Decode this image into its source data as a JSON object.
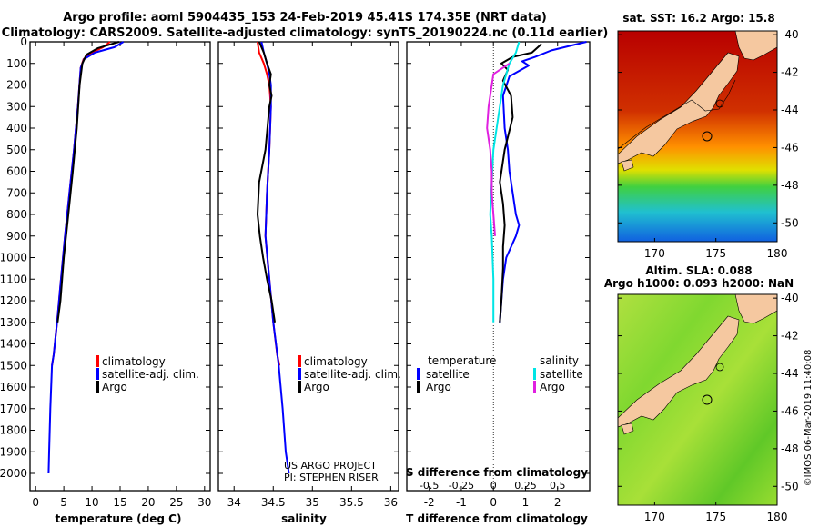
{
  "header": {
    "line1": "Argo profile: aoml 5904435_153 24-Feb-2019 45.41S 174.35E (NRT data)",
    "line2": "Climatology: CARS2009. Satellite-adjusted climatology: synTS_20190224.nc (0.11d earlier)"
  },
  "colors": {
    "climatology": "#ff0000",
    "satellite": "#0000ff",
    "argo": "#000000",
    "sal_satellite": "#00e5e5",
    "sal_argo": "#e020e0",
    "land": "#f5c8a0"
  },
  "chart_data": [
    {
      "type": "line",
      "id": "temperature",
      "xlabel": "temperature (deg C)",
      "ylabel": "",
      "xlim": [
        -1,
        31
      ],
      "ylim": [
        2080,
        0
      ],
      "xticks": [
        "0",
        "5",
        "10",
        "15",
        "20",
        "25",
        "30"
      ],
      "xtick_values": [
        0,
        5,
        10,
        15,
        20,
        25,
        30
      ],
      "yticks": [
        "0",
        "100",
        "200",
        "300",
        "400",
        "500",
        "600",
        "700",
        "800",
        "900",
        "1000",
        "1100",
        "1200",
        "1300",
        "1400",
        "1500",
        "1600",
        "1700",
        "1800",
        "1900",
        "2000"
      ],
      "ytick_values": [
        0,
        100,
        200,
        300,
        400,
        500,
        600,
        700,
        800,
        900,
        1000,
        1100,
        1200,
        1300,
        1400,
        1500,
        1600,
        1700,
        1800,
        1900,
        2000
      ],
      "legend": [
        "climatology",
        "satellite-adj. clim.",
        "Argo"
      ],
      "series": [
        {
          "name": "climatology",
          "color_key": "climatology",
          "x": [
            13.2,
            12,
            10,
            8.5,
            8,
            7.5,
            6.8,
            6,
            5.2,
            4.5,
            3.8,
            3.2,
            2.9
          ],
          "y": [
            0,
            25,
            50,
            80,
            120,
            300,
            500,
            700,
            900,
            1100,
            1300,
            1450,
            1500
          ]
        },
        {
          "name": "satellite-adj. clim.",
          "color_key": "satellite",
          "x": [
            15.6,
            14,
            10.5,
            8.6,
            8,
            7.5,
            6.8,
            6,
            5.2,
            4.5,
            3.8,
            3.2,
            2.9,
            2.6,
            2.4,
            2.3
          ],
          "y": [
            0,
            25,
            50,
            80,
            120,
            300,
            500,
            700,
            900,
            1100,
            1300,
            1450,
            1500,
            1700,
            1900,
            2000
          ]
        },
        {
          "name": "Argo",
          "color_key": "argo",
          "x": [
            14.8,
            11,
            9,
            8.3,
            7.8,
            7.3,
            6.6,
            5.8,
            5,
            4.4,
            3.9
          ],
          "y": [
            0,
            30,
            60,
            100,
            200,
            400,
            600,
            800,
            1000,
            1200,
            1300
          ]
        }
      ]
    },
    {
      "type": "line",
      "id": "salinity",
      "xlabel": "salinity",
      "ylabel": "",
      "xlim": [
        33.8,
        36.1
      ],
      "ylim": [
        2080,
        0
      ],
      "xticks": [
        "34",
        "34.5",
        "35",
        "35.5",
        "36"
      ],
      "xtick_values": [
        34,
        34.5,
        35,
        35.5,
        36
      ],
      "legend": [
        "climatology",
        "satellite-adj. clim.",
        "Argo"
      ],
      "annotations": [
        "US ARGO PROJECT",
        "PI: STEPHEN RISER"
      ],
      "series": [
        {
          "name": "climatology",
          "color_key": "climatology",
          "x": [
            34.3,
            34.32,
            34.38,
            34.42,
            34.45,
            34.47,
            34.45,
            34.42,
            34.4,
            34.45,
            34.5,
            34.55,
            34.58
          ],
          "y": [
            0,
            50,
            100,
            150,
            200,
            300,
            500,
            700,
            900,
            1100,
            1300,
            1450,
            1500
          ]
        },
        {
          "name": "satellite-adj. clim.",
          "color_key": "satellite",
          "x": [
            34.35,
            34.38,
            34.42,
            34.45,
            34.47,
            34.47,
            34.45,
            34.42,
            34.4,
            34.45,
            34.5,
            34.57,
            34.62,
            34.66,
            34.7
          ],
          "y": [
            0,
            50,
            100,
            150,
            200,
            300,
            500,
            700,
            900,
            1100,
            1300,
            1500,
            1700,
            1900,
            2000
          ]
        },
        {
          "name": "Argo",
          "color_key": "argo",
          "x": [
            34.32,
            34.38,
            34.42,
            34.47,
            34.45,
            34.48,
            34.45,
            34.4,
            34.32,
            34.3,
            34.33,
            34.37,
            34.42,
            34.48,
            34.52
          ],
          "y": [
            0,
            50,
            100,
            150,
            200,
            250,
            300,
            500,
            650,
            800,
            900,
            1000,
            1100,
            1200,
            1300
          ]
        }
      ]
    },
    {
      "type": "line",
      "id": "difference",
      "xlabel": "T difference from climatology",
      "xlabel2": "S difference from climatology",
      "xlim": [
        -2.7,
        3
      ],
      "ylim": [
        2080,
        0
      ],
      "xticks": [
        "-2",
        "-1",
        "0",
        "1",
        "2"
      ],
      "xtick_values": [
        -2,
        -1,
        0,
        1,
        2
      ],
      "s_ticks": [
        "-0.5",
        "-0.25",
        "0",
        "0.25",
        "0.5"
      ],
      "s_tick_values": [
        -0.5,
        -0.25,
        0,
        0.25,
        0.5
      ],
      "legend_temperature_title": "temperature",
      "legend_salinity_title": "salinity",
      "legend_temperature": [
        "satellite",
        "Argo"
      ],
      "legend_salinity": [
        "satellite",
        "Argo"
      ],
      "series": [
        {
          "name": "T satellite",
          "color_key": "satellite",
          "x": [
            2.9,
            1.8,
            1.3,
            0.9,
            1.1,
            0.5,
            0.3,
            0.35,
            0.45,
            0.5,
            0.6,
            0.7,
            0.8,
            0.7,
            0.4,
            0.3,
            0.25,
            0.2
          ],
          "y": [
            0,
            40,
            70,
            90,
            110,
            160,
            250,
            400,
            500,
            600,
            700,
            800,
            850,
            900,
            1000,
            1100,
            1200,
            1300
          ]
        },
        {
          "name": "T Argo",
          "color_key": "argo",
          "x": [
            1.5,
            1.2,
            0.6,
            0.25,
            0.45,
            0.3,
            0.55,
            0.6,
            0.35,
            0.2,
            0.3,
            0.35,
            0.3,
            0.3,
            0.25,
            0.2
          ],
          "y": [
            10,
            50,
            70,
            100,
            130,
            180,
            250,
            350,
            500,
            650,
            750,
            850,
            950,
            1050,
            1200,
            1300
          ]
        },
        {
          "name": "S satellite",
          "color_key": "sal_satellite",
          "x": [
            0.8,
            0.7,
            0.5,
            0.3,
            0.15,
            0.0,
            -0.05,
            -0.1,
            -0.05,
            0.0,
            0.0
          ],
          "y": [
            0,
            50,
            100,
            200,
            350,
            500,
            650,
            800,
            900,
            1100,
            1300
          ]
        },
        {
          "name": "S Argo",
          "color_key": "sal_argo",
          "x": [
            0.5,
            0.0,
            -0.05,
            -0.15,
            -0.2,
            -0.1,
            -0.05,
            -0.05,
            0.0,
            0.05
          ],
          "y": [
            100,
            150,
            200,
            300,
            400,
            500,
            600,
            700,
            800,
            900
          ]
        }
      ]
    }
  ],
  "maps": {
    "sst": {
      "title": "sat. SST: 16.2 Argo: 15.8",
      "lat_ticks": [
        "-40",
        "-42",
        "-44",
        "-46",
        "-48",
        "-50"
      ],
      "lat_values": [
        -40,
        -42,
        -44,
        -46,
        -48,
        -50
      ],
      "lon_ticks": [
        "170",
        "175",
        "180"
      ],
      "lon_values": [
        170,
        175,
        180
      ],
      "lat_range": [
        -51,
        -39.8
      ],
      "lon_range": [
        167,
        180
      ]
    },
    "sla": {
      "title1": "Altim. SLA: 0.088",
      "title2": "Argo h1000: 0.093 h2000: NaN",
      "lat_ticks": [
        "-40",
        "-42",
        "-44",
        "-46",
        "-48",
        "-50"
      ],
      "lat_values": [
        -40,
        -42,
        -44,
        -46,
        -48,
        -50
      ],
      "lon_ticks": [
        "170",
        "175",
        "180"
      ],
      "lon_values": [
        170,
        175,
        180
      ],
      "lat_range": [
        -51,
        -39.8
      ],
      "lon_range": [
        167,
        180
      ],
      "credit": "©IMOS 06-Mar-2019 11:40:08"
    }
  }
}
